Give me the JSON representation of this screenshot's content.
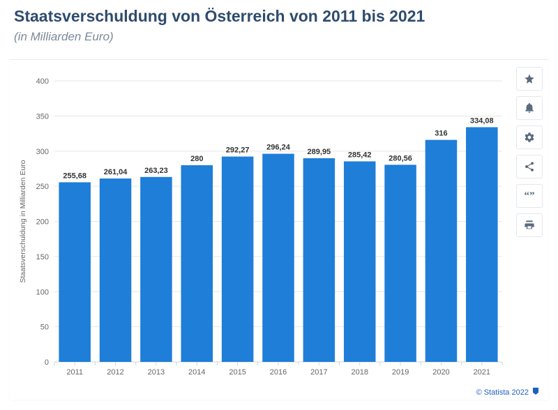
{
  "header": {
    "title": "Staatsverschuldung von Österreich von 2011 bis 2021",
    "subtitle": "(in Milliarden Euro)"
  },
  "chart": {
    "type": "bar",
    "y_axis_label": "Staatsverschuldung in Milliarden Euro",
    "categories": [
      "2011",
      "2012",
      "2013",
      "2014",
      "2015",
      "2016",
      "2017",
      "2018",
      "2019",
      "2020",
      "2021"
    ],
    "values": [
      255.68,
      261.04,
      263.23,
      280,
      292.27,
      296.24,
      289.95,
      285.42,
      280.56,
      316,
      334.08
    ],
    "value_labels": [
      "255,68",
      "261,04",
      "263,23",
      "280",
      "292,27",
      "296,24",
      "289,95",
      "285,42",
      "280,56",
      "316",
      "334,08"
    ],
    "bar_color": "#1f7ed8",
    "grid_color": "#e6e6e6",
    "axis_color": "#cfd6dc",
    "tick_color": "#666666",
    "background_color": "#ffffff",
    "ylim": [
      0,
      400
    ],
    "ytick_step": 50,
    "bar_width_ratio": 0.78,
    "label_fontsize": 11,
    "axis_title_fontsize": 10.5
  },
  "toolbar": {
    "items": [
      {
        "name": "favorite-icon"
      },
      {
        "name": "notify-icon"
      },
      {
        "name": "settings-icon"
      },
      {
        "name": "share-icon"
      },
      {
        "name": "cite-icon"
      },
      {
        "name": "print-icon"
      }
    ]
  },
  "footer": {
    "copyright": "© Statista 2022"
  }
}
